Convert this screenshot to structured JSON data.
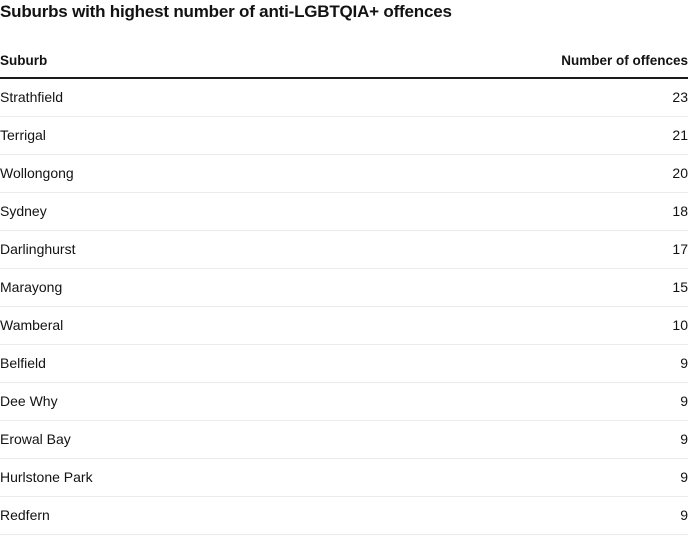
{
  "title": "Suburbs with highest number of anti-LGBTQIA+ offences",
  "columns": {
    "suburb": "Suburb",
    "offences": "Number of offences"
  },
  "colors": {
    "text": "#121212",
    "header_rule": "#1a1a1a",
    "row_rule": "#ececec",
    "background": "#ffffff"
  },
  "chart_data": {
    "type": "table",
    "title": "Suburbs with highest number of anti-LGBTQIA+ offences",
    "columns": [
      "Suburb",
      "Number of offences"
    ],
    "rows": [
      [
        "Strathfield",
        23
      ],
      [
        "Terrigal",
        21
      ],
      [
        "Wollongong",
        20
      ],
      [
        "Sydney",
        18
      ],
      [
        "Darlinghurst",
        17
      ],
      [
        "Marayong",
        15
      ],
      [
        "Wamberal",
        10
      ],
      [
        "Belfield",
        9
      ],
      [
        "Dee Why",
        9
      ],
      [
        "Erowal Bay",
        9
      ],
      [
        "Hurlstone Park",
        9
      ],
      [
        "Redfern",
        9
      ]
    ],
    "layout_hints": {
      "value_column_align": "right",
      "header_rule_thick": true,
      "row_separators": true,
      "grid": false
    }
  }
}
